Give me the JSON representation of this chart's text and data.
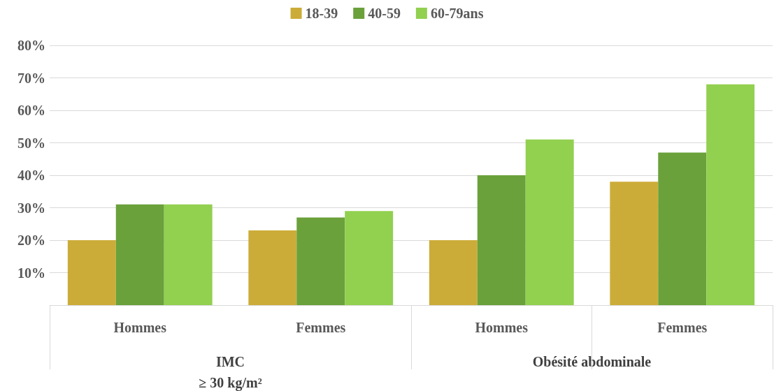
{
  "chart_data": {
    "type": "bar",
    "categories": [
      "Hommes",
      "Femmes",
      "Hommes",
      "Femmes"
    ],
    "series": [
      {
        "name": "18-39",
        "color": "#ccac38",
        "values": [
          20,
          23,
          20,
          38
        ]
      },
      {
        "name": "40-59",
        "color": "#6aa13a",
        "values": [
          31,
          27,
          40,
          47
        ]
      },
      {
        "name": "60-79ans",
        "color": "#92d050",
        "values": [
          31,
          29,
          51,
          68
        ]
      }
    ],
    "ylim": [
      0,
      80
    ],
    "yticks": [
      {
        "value": 0,
        "label": null
      },
      {
        "value": 10,
        "label": "10%"
      },
      {
        "value": 20,
        "label": "20%"
      },
      {
        "value": 30,
        "label": "30%"
      },
      {
        "value": 40,
        "label": "40%"
      },
      {
        "value": 50,
        "label": "50%"
      },
      {
        "value": 60,
        "label": "60%"
      },
      {
        "value": 70,
        "label": "70%"
      },
      {
        "value": 80,
        "label": "80%"
      }
    ],
    "annotations": [
      "IMC\n≥ 30 kg/m²",
      "Obésité abdominale"
    ],
    "grid": "y",
    "legend": "top"
  }
}
